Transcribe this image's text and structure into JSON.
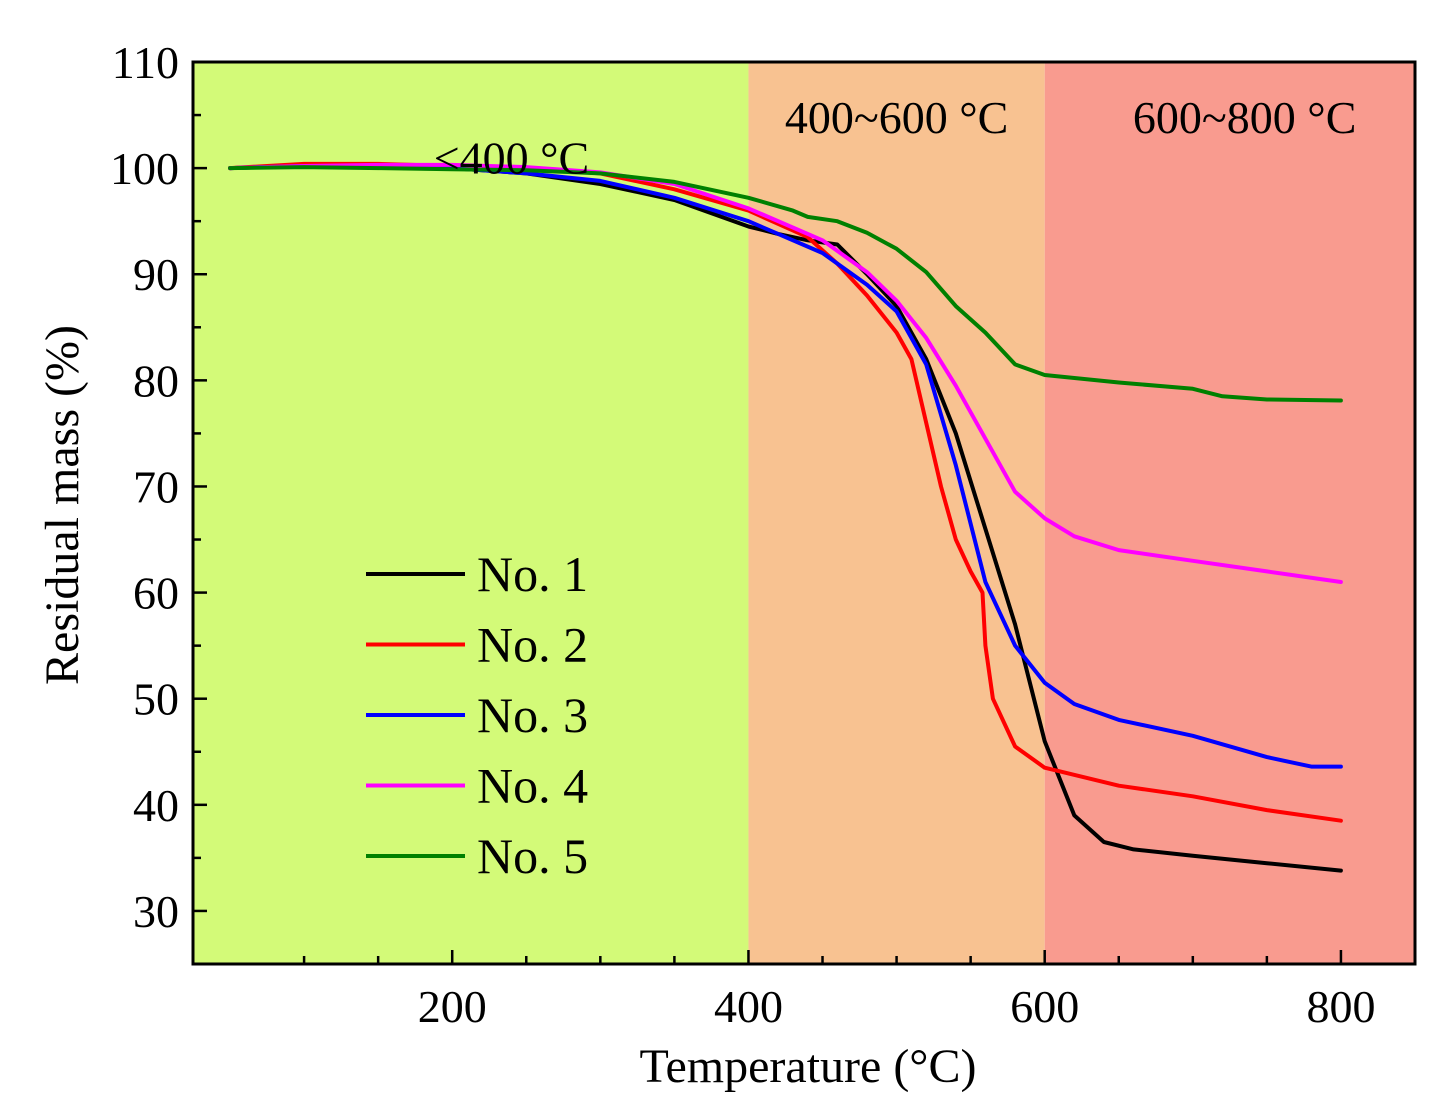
{
  "chart_data": {
    "type": "line",
    "title": "",
    "xlabel": "Temperature (°C)",
    "ylabel": "Residual mass (%)",
    "xlim": [
      25,
      850
    ],
    "ylim": [
      25,
      110
    ],
    "xticks": [
      200,
      400,
      600,
      800
    ],
    "xtick_labels": [
      "200",
      "400",
      "600",
      "800"
    ],
    "yticks": [
      30,
      40,
      50,
      60,
      70,
      80,
      90,
      100,
      110
    ],
    "ytick_labels": [
      "30",
      "40",
      "50",
      "60",
      "70",
      "80",
      "90",
      "100",
      "110"
    ],
    "grid": false,
    "legend_position": "lower-left",
    "regions": [
      {
        "label": "<400 °C",
        "from": 25,
        "to": 400,
        "color": "#d3fa78"
      },
      {
        "label": "400~600 °C",
        "from": 400,
        "to": 600,
        "color": "#f8c291"
      },
      {
        "label": "600~800 °C",
        "from": 600,
        "to": 850,
        "color": "#f99b8f"
      }
    ],
    "series": [
      {
        "name": "No. 1",
        "color": "#000000",
        "x": [
          50,
          100,
          150,
          200,
          250,
          300,
          350,
          380,
          400,
          420,
          440,
          460,
          480,
          500,
          520,
          540,
          560,
          580,
          600,
          620,
          640,
          660,
          700,
          750,
          800
        ],
        "y": [
          100,
          100.2,
          100.2,
          100,
          99.5,
          98.5,
          97,
          95.5,
          94.5,
          93.8,
          93.2,
          92.8,
          90,
          87,
          82,
          75,
          66,
          57,
          46,
          39,
          36.5,
          35.8,
          35.2,
          34.5,
          33.8
        ]
      },
      {
        "name": "No. 2",
        "color": "#ff0000",
        "x": [
          50,
          100,
          150,
          200,
          250,
          300,
          350,
          400,
          440,
          460,
          480,
          500,
          510,
          520,
          530,
          540,
          550,
          558,
          560,
          565,
          580,
          600,
          650,
          700,
          750,
          800
        ],
        "y": [
          100,
          100.4,
          100.4,
          100.2,
          100,
          99.5,
          98,
          96,
          93.5,
          91,
          88,
          84.5,
          82,
          76,
          70,
          65,
          62,
          60,
          55,
          50,
          45.5,
          43.5,
          41.8,
          40.8,
          39.5,
          38.5
        ]
      },
      {
        "name": "No. 3",
        "color": "#0000ff",
        "x": [
          50,
          100,
          150,
          200,
          250,
          300,
          350,
          400,
          450,
          480,
          500,
          520,
          540,
          560,
          580,
          600,
          620,
          650,
          700,
          750,
          780,
          800
        ],
        "y": [
          100,
          100.2,
          100.2,
          100,
          99.5,
          98.8,
          97.2,
          95,
          92,
          89,
          86.5,
          81.5,
          72,
          61,
          55,
          51.5,
          49.5,
          48,
          46.5,
          44.5,
          43.6,
          43.6
        ]
      },
      {
        "name": "No. 4",
        "color": "#ff00ff",
        "x": [
          50,
          100,
          150,
          200,
          250,
          300,
          350,
          400,
          450,
          480,
          500,
          520,
          540,
          560,
          580,
          600,
          620,
          650,
          700,
          750,
          800
        ],
        "y": [
          100,
          100.2,
          100.3,
          100.3,
          100.1,
          99.6,
          98.5,
          96.2,
          93.2,
          90.2,
          87.5,
          84,
          79.5,
          74.5,
          69.5,
          67,
          65.3,
          64,
          63,
          62,
          61
        ]
      },
      {
        "name": "No. 5",
        "color": "#008000",
        "x": [
          50,
          100,
          150,
          200,
          250,
          300,
          350,
          400,
          430,
          440,
          460,
          480,
          500,
          520,
          540,
          560,
          580,
          600,
          650,
          700,
          720,
          750,
          800
        ],
        "y": [
          100,
          100.1,
          100,
          99.9,
          99.8,
          99.5,
          98.7,
          97.2,
          96,
          95.4,
          95,
          93.9,
          92.4,
          90.2,
          87,
          84.5,
          81.5,
          80.5,
          79.8,
          79.2,
          78.5,
          78.2,
          78.1
        ]
      }
    ]
  }
}
